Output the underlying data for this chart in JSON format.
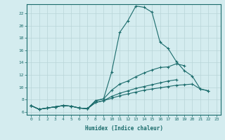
{
  "xlabel": "Humidex (Indice chaleur)",
  "background_color": "#d4ecef",
  "grid_color": "#b8d5d8",
  "line_color": "#1a6b6b",
  "x_values": [
    0,
    1,
    2,
    3,
    4,
    5,
    6,
    7,
    8,
    9,
    10,
    11,
    12,
    13,
    14,
    15,
    16,
    17,
    18,
    19,
    20,
    21,
    22,
    23
  ],
  "line1": [
    7.0,
    6.4,
    6.6,
    6.8,
    7.0,
    6.9,
    6.6,
    6.5,
    7.8,
    8.1,
    12.5,
    18.9,
    20.8,
    23.2,
    23.0,
    22.2,
    17.3,
    16.3,
    14.2,
    12.7,
    11.8,
    9.7,
    9.4,
    null
  ],
  "line2": [
    7.0,
    6.4,
    6.6,
    6.8,
    7.0,
    6.9,
    6.6,
    6.5,
    7.8,
    8.1,
    9.5,
    10.5,
    11.0,
    11.7,
    12.3,
    12.8,
    13.2,
    13.3,
    13.8,
    13.5,
    null,
    null,
    null,
    null
  ],
  "line3": [
    7.0,
    6.4,
    6.6,
    6.8,
    7.0,
    6.9,
    6.6,
    6.5,
    7.5,
    7.8,
    8.5,
    9.0,
    9.4,
    9.8,
    10.1,
    10.4,
    10.7,
    11.0,
    11.2,
    null,
    null,
    null,
    null,
    null
  ],
  "line4": [
    7.0,
    6.4,
    6.6,
    6.8,
    7.0,
    6.9,
    6.6,
    6.5,
    7.5,
    7.8,
    8.2,
    8.6,
    8.9,
    9.2,
    9.5,
    9.7,
    9.9,
    10.1,
    10.3,
    10.4,
    10.5,
    9.7,
    9.4,
    null
  ],
  "ylim": [
    5.5,
    23.5
  ],
  "xlim": [
    -0.5,
    23.5
  ],
  "yticks": [
    6,
    8,
    10,
    12,
    14,
    16,
    18,
    20,
    22
  ],
  "xticks": [
    0,
    1,
    2,
    3,
    4,
    5,
    6,
    7,
    8,
    9,
    10,
    11,
    12,
    13,
    14,
    15,
    16,
    17,
    18,
    19,
    20,
    21,
    22,
    23
  ]
}
